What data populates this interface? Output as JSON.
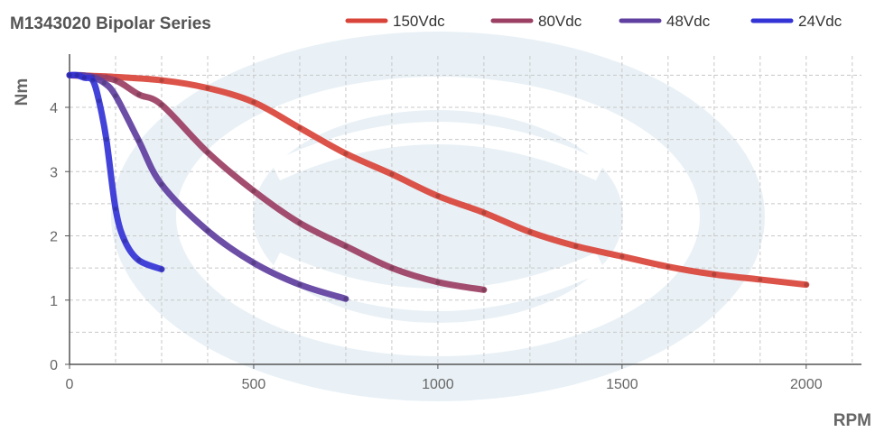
{
  "chart_data": {
    "type": "line",
    "title": "M1343020 Bipolar Series",
    "xlabel": "RPM",
    "ylabel": "Nm",
    "xlim": [
      0,
      2150
    ],
    "ylim": [
      0,
      4.8
    ],
    "x_ticks": [
      0,
      500,
      1000,
      1500,
      2000
    ],
    "y_ticks": [
      0,
      1,
      2,
      3,
      4
    ],
    "grid": true,
    "legend_position": "top-right",
    "series": [
      {
        "name": "150Vdc",
        "color": "#d9443a",
        "x": [
          0,
          100,
          250,
          375,
          500,
          625,
          750,
          875,
          1000,
          1125,
          1250,
          1375,
          1500,
          1625,
          1750,
          1875,
          2000
        ],
        "y": [
          4.5,
          4.48,
          4.42,
          4.3,
          4.08,
          3.68,
          3.28,
          2.96,
          2.62,
          2.36,
          2.06,
          1.84,
          1.68,
          1.52,
          1.4,
          1.32,
          1.24
        ]
      },
      {
        "name": "80Vdc",
        "color": "#9b3f63",
        "x": [
          0,
          60,
          125,
          188,
          250,
          375,
          500,
          625,
          750,
          875,
          1000,
          1125
        ],
        "y": [
          4.5,
          4.48,
          4.42,
          4.2,
          4.04,
          3.3,
          2.7,
          2.2,
          1.84,
          1.5,
          1.28,
          1.16
        ]
      },
      {
        "name": "48Vdc",
        "color": "#5f3f9f",
        "x": [
          0,
          30,
          63,
          94,
          125,
          188,
          250,
          375,
          500,
          625,
          750
        ],
        "y": [
          4.5,
          4.5,
          4.47,
          4.38,
          4.18,
          3.48,
          2.8,
          2.08,
          1.58,
          1.24,
          1.02
        ]
      },
      {
        "name": "24Vdc",
        "color": "#3333d6",
        "x": [
          0,
          20,
          40,
          63,
          80,
          100,
          125,
          150,
          188,
          250
        ],
        "y": [
          4.5,
          4.5,
          4.46,
          4.42,
          4.1,
          3.5,
          2.42,
          1.92,
          1.62,
          1.48
        ]
      }
    ]
  }
}
